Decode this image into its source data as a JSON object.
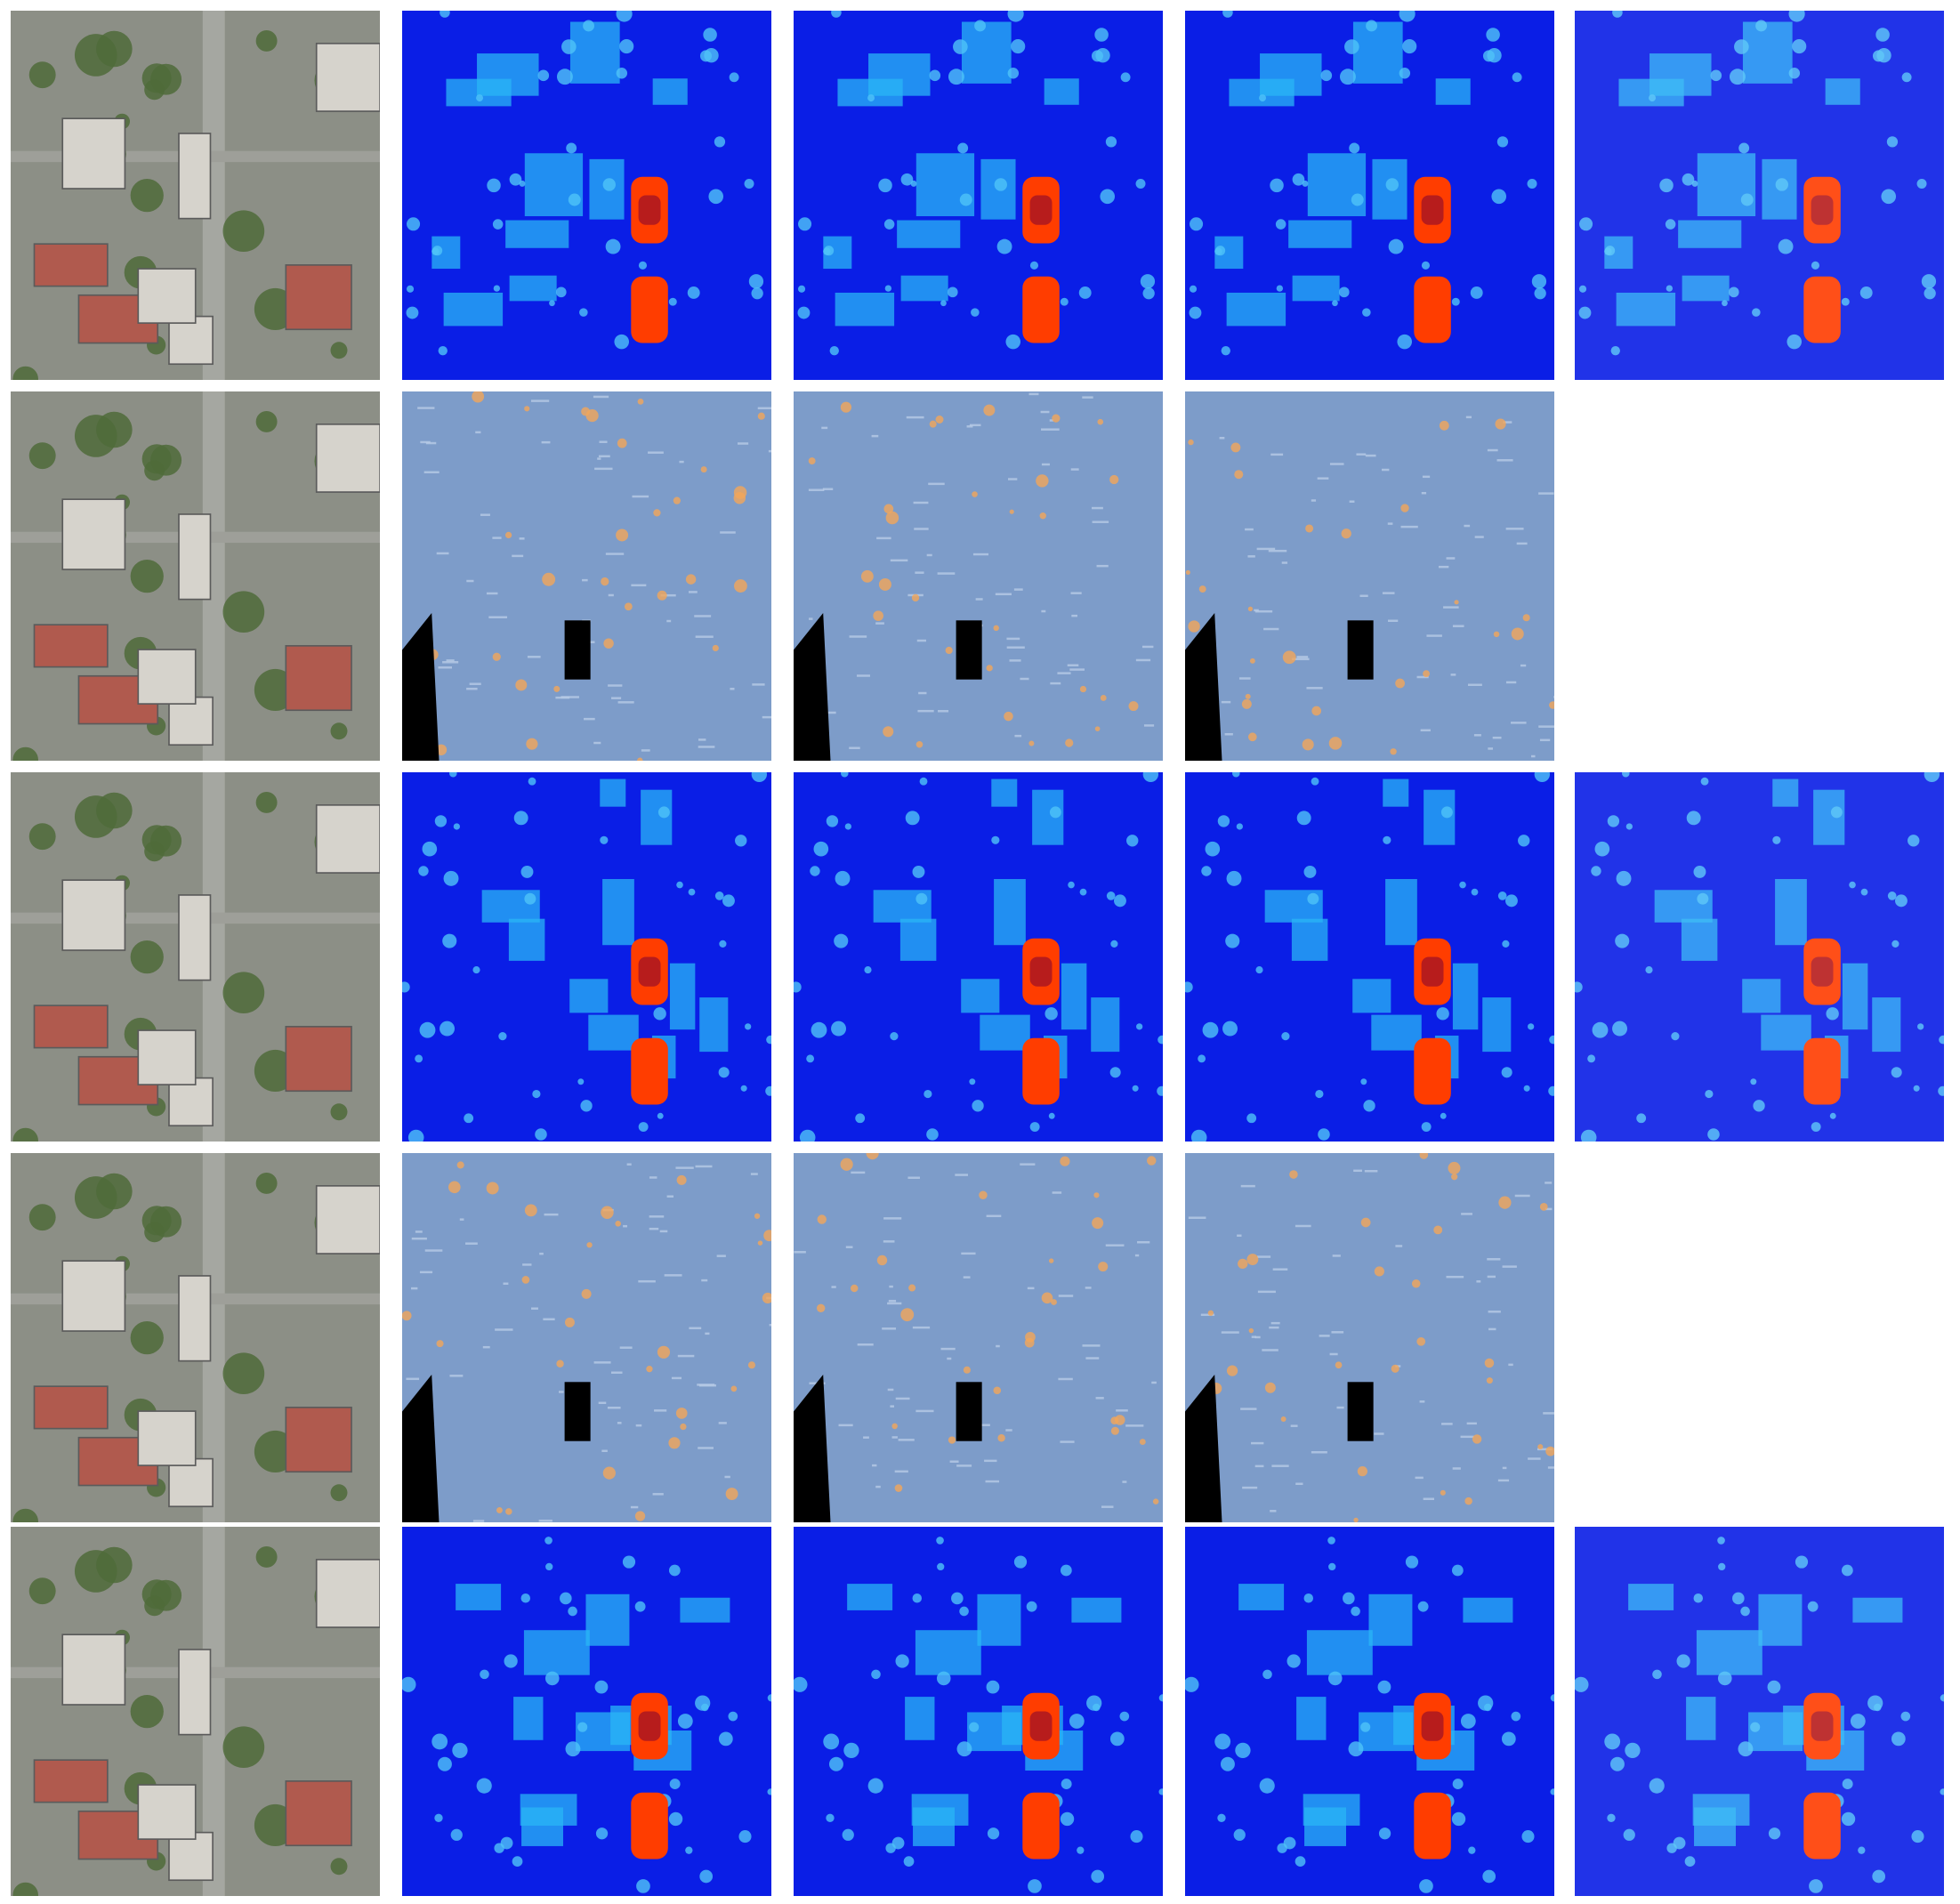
{
  "figure": {
    "rows": 5,
    "columns": 5,
    "panels": [
      [
        "aerial",
        "heightmap",
        "heightmap",
        "heightmap",
        "heightmap"
      ],
      [
        "aerial",
        "error",
        "error",
        "error",
        "empty"
      ],
      [
        "aerial",
        "heightmap",
        "heightmap",
        "heightmap",
        "heightmap"
      ],
      [
        "aerial",
        "error",
        "error",
        "error",
        "empty"
      ],
      [
        "aerial",
        "heightmap",
        "heightmap",
        "heightmap",
        "heightmap"
      ]
    ]
  },
  "colors": {
    "heightmap_low": "#0a1ee6",
    "heightmap_mid": "#29b6f6",
    "heightmap_high": "#ff3d00",
    "heightmap_peak": "#b71c1c",
    "error_base": "#7d9cc9",
    "error_highlight": "#f2a65a",
    "error_shadow": "#000000",
    "aerial_ground": "#8c8f86",
    "aerial_vegetation": "#4f6b3a",
    "aerial_roof": "#d6d3cc"
  }
}
